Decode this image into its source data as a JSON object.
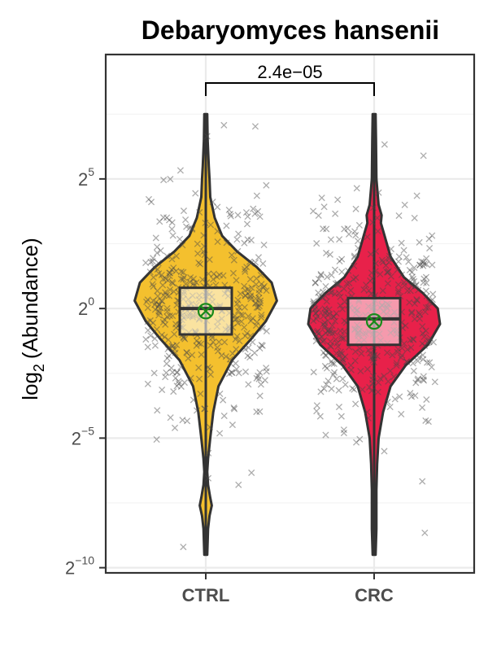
{
  "chart_data": {
    "type": "violin",
    "title": "Debaryomyces hansenii",
    "ylabel_base": "log",
    "ylabel_sub": "2",
    "ylabel_rest": "(Abundance)",
    "y_scale": "log2",
    "ylim": [
      -10.2,
      9.8
    ],
    "y_ticks": [
      {
        "base": "2",
        "exp": "5",
        "value": 5
      },
      {
        "base": "2",
        "exp": "0",
        "value": 0
      },
      {
        "base": "2",
        "exp": "−5",
        "value": -5
      },
      {
        "base": "2",
        "exp": "−10",
        "value": -10
      }
    ],
    "grid": true,
    "categories": [
      "CTRL",
      "CRC"
    ],
    "groups": [
      {
        "name": "CTRL",
        "color": "#F4C02E",
        "min": -9.5,
        "q1": -1.0,
        "median": 0.0,
        "q3": 0.8,
        "max": 7.5,
        "mean": -0.1,
        "density": [
          [
            -9.5,
            0.02
          ],
          [
            -8.5,
            0.03
          ],
          [
            -8.0,
            0.05
          ],
          [
            -7.6,
            0.08
          ],
          [
            -7.3,
            0.06
          ],
          [
            -6.8,
            0.03
          ],
          [
            -6.3,
            0.02
          ],
          [
            -5.8,
            0.03
          ],
          [
            -5.0,
            0.06
          ],
          [
            -4.0,
            0.1
          ],
          [
            -3.0,
            0.17
          ],
          [
            -2.0,
            0.35
          ],
          [
            -1.2,
            0.6
          ],
          [
            -0.5,
            0.8
          ],
          [
            0.3,
            0.95
          ],
          [
            1.0,
            0.88
          ],
          [
            1.6,
            0.68
          ],
          [
            2.2,
            0.42
          ],
          [
            2.8,
            0.22
          ],
          [
            3.5,
            0.12
          ],
          [
            4.3,
            0.06
          ],
          [
            5.0,
            0.05
          ],
          [
            5.5,
            0.04
          ],
          [
            6.5,
            0.025
          ],
          [
            7.5,
            0.02
          ]
        ]
      },
      {
        "name": "CRC",
        "color": "#E8214A",
        "min": -9.5,
        "q1": -1.4,
        "median": -0.4,
        "q3": 0.4,
        "max": 7.5,
        "mean": -0.5,
        "density": [
          [
            -9.5,
            0.02
          ],
          [
            -8.5,
            0.03
          ],
          [
            -7.0,
            0.03
          ],
          [
            -6.0,
            0.04
          ],
          [
            -5.0,
            0.06
          ],
          [
            -4.0,
            0.12
          ],
          [
            -3.0,
            0.22
          ],
          [
            -2.2,
            0.42
          ],
          [
            -1.4,
            0.72
          ],
          [
            -0.6,
            0.88
          ],
          [
            0.0,
            0.85
          ],
          [
            0.6,
            0.65
          ],
          [
            1.2,
            0.4
          ],
          [
            2.0,
            0.22
          ],
          [
            2.8,
            0.14
          ],
          [
            3.3,
            0.09
          ],
          [
            3.6,
            0.1
          ],
          [
            4.0,
            0.06
          ],
          [
            5.0,
            0.03
          ],
          [
            6.5,
            0.025
          ],
          [
            7.5,
            0.02
          ]
        ]
      }
    ],
    "comparison": {
      "label": "2.4e−05",
      "between": [
        "CTRL",
        "CRC"
      ]
    }
  }
}
